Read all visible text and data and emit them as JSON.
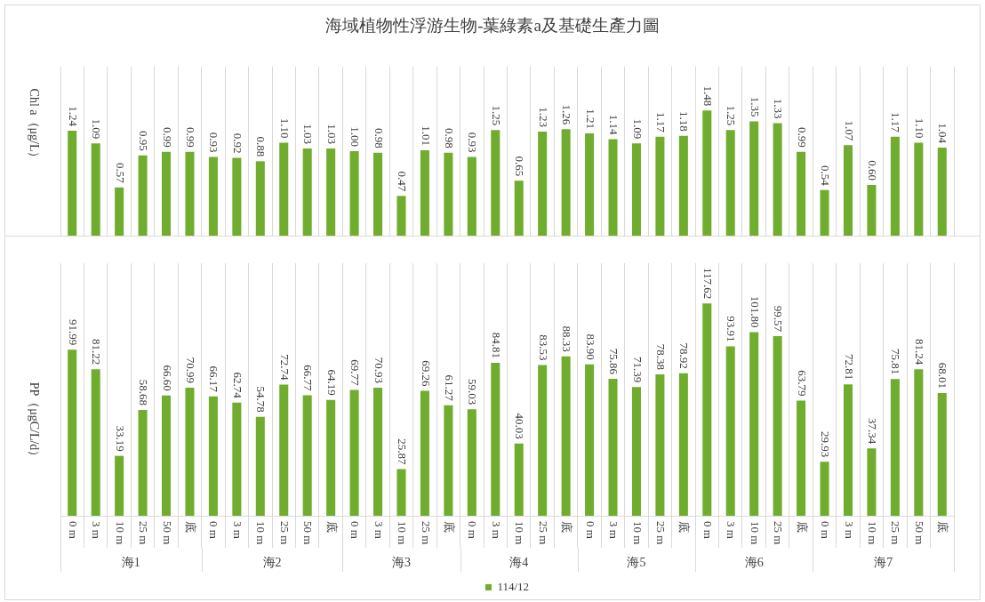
{
  "chart_data": [
    {
      "type": "bar",
      "title": "海域植物性浮游生物-葉綠素a及基礎生產力圖",
      "ylabel": "Chl a（μg/L）",
      "tick_labels": false,
      "grid": "x",
      "categories": [
        null,
        null,
        null,
        null,
        null,
        null,
        null,
        null,
        null,
        null,
        null,
        null,
        null,
        null,
        null,
        null,
        null,
        null,
        null,
        null,
        null,
        null,
        null,
        null,
        null,
        null,
        null,
        null,
        null,
        null,
        null,
        null,
        null,
        null,
        null,
        null,
        null,
        null
      ],
      "series": [
        {
          "color": "#70ad2e",
          "values": [
            1.24,
            1.09,
            0.57,
            0.95,
            0.99,
            0.99,
            0.93,
            0.92,
            0.88,
            1.1,
            1.03,
            1.03,
            1.0,
            0.98,
            0.47,
            1.01,
            0.98,
            0.93,
            1.25,
            0.65,
            1.23,
            1.26,
            1.21,
            1.14,
            1.09,
            1.17,
            1.18,
            1.48,
            1.25,
            1.35,
            1.33,
            0.99,
            0.54,
            1.07,
            0.6,
            1.17,
            1.1,
            1.04
          ],
          "value_labels": [
            "1.24",
            "1.09",
            "0.57",
            "0.95",
            "0.99",
            "0.99",
            "0.93",
            "0.92",
            "0.88",
            "1.10",
            "1.03",
            "1.03",
            "1.00",
            "0.98",
            "0.47",
            "1.01",
            "0.98",
            "0.93",
            "1.25",
            "0.65",
            "1.23",
            "1.26",
            "1.21",
            "1.14",
            "1.09",
            "1.17",
            "1.18",
            "1.48",
            "1.25",
            "1.35",
            "1.33",
            "0.99",
            "0.54",
            "1.07",
            "0.60",
            "1.17",
            "1.10",
            "1.04"
          ]
        }
      ]
    },
    {
      "type": "bar",
      "ylabel": "PP（μgC/L/d）",
      "grid": "x",
      "legend": "bottom",
      "categories": [
        "0 m",
        "3 m",
        "10 m",
        "25 m",
        "50 m",
        "底",
        "0 m",
        "3 m",
        "10 m",
        "25 m",
        "50 m",
        "底",
        "0 m",
        "3 m",
        "10 m",
        "25 m",
        "底",
        "0 m",
        "3 m",
        "10 m",
        "25 m",
        "底",
        "0 m",
        "3 m",
        "10 m",
        "25 m",
        "底",
        "0 m",
        "3 m",
        "10 m",
        "25 m",
        "底",
        "0 m",
        "3 m",
        "10 m",
        "25 m",
        "50 m",
        "底"
      ],
      "series": [
        {
          "name": "114/12",
          "color": "#70ad2e",
          "values": [
            91.99,
            81.22,
            33.19,
            58.68,
            66.6,
            70.99,
            66.17,
            62.74,
            54.78,
            72.74,
            66.77,
            64.19,
            69.77,
            70.93,
            25.87,
            69.26,
            61.27,
            59.03,
            84.81,
            40.03,
            83.53,
            88.33,
            83.9,
            75.86,
            71.39,
            78.38,
            78.92,
            117.62,
            93.91,
            101.8,
            99.57,
            63.79,
            29.93,
            72.81,
            37.34,
            75.81,
            81.24,
            68.01
          ],
          "value_labels": [
            "91.99",
            "81.22",
            "33.19",
            "58.68",
            "66.60",
            "70.99",
            "66.17",
            "62.74",
            "54.78",
            "72.74",
            "66.77",
            "64.19",
            "69.77",
            "70.93",
            "25.87",
            "69.26",
            "61.27",
            "59.03",
            "84.81",
            "40.03",
            "83.53",
            "88.33",
            "83.90",
            "75.86",
            "71.39",
            "78.38",
            "78.92",
            "117.62",
            "93.91",
            "101.80",
            "99.57",
            "63.79",
            "29.93",
            "72.81",
            "37.34",
            "75.81",
            "81.24",
            "68.01"
          ]
        }
      ],
      "annotations": [
        "海1",
        "海2",
        "海3",
        "海4",
        "海5",
        "海6",
        "海7"
      ]
    }
  ]
}
